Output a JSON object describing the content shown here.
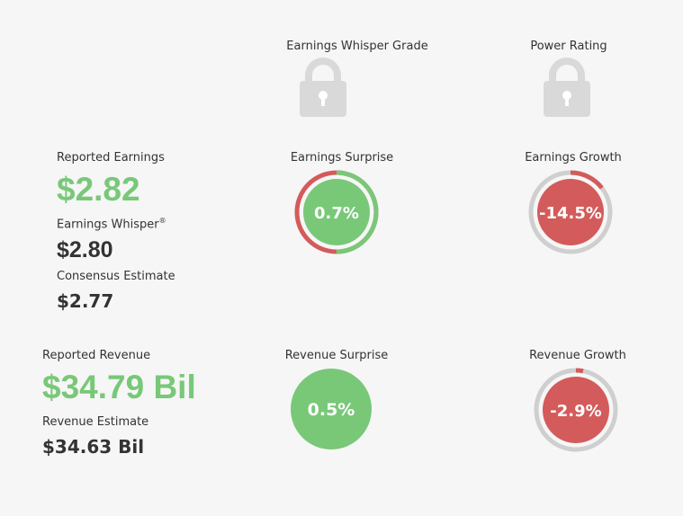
{
  "headers": {
    "earnings_whisper_grade": "Earnings Whisper Grade",
    "power_rating": "Power Rating"
  },
  "earnings": {
    "reported_label": "Reported Earnings",
    "reported_value": "$2.82",
    "whisper_label": "Earnings Whisper",
    "whisper_reg": "®",
    "whisper_value": "$2.80",
    "consensus_label": "Consensus Estimate",
    "consensus_value": "$2.77",
    "surprise_label": "Earnings Surprise",
    "surprise_value": "0.7%",
    "surprise_fraction": 0.5,
    "growth_label": "Earnings Growth",
    "growth_value": "-14.5%",
    "growth_fraction": 0.145
  },
  "revenue": {
    "reported_label": "Reported Revenue",
    "reported_value": "$34.79 Bil",
    "estimate_label": "Revenue Estimate",
    "estimate_value": "$34.63 Bil",
    "surprise_label": "Revenue Surprise",
    "surprise_value": "0.5%",
    "growth_label": "Revenue Growth",
    "growth_value": "-2.9%",
    "growth_fraction": 0.029
  },
  "colors": {
    "green": "#78c878",
    "red": "#d45b5b",
    "grey": "#cfcfcf",
    "lock": "#d9d9d9"
  },
  "icons": {
    "grade_lock": "lock-icon",
    "power_lock": "lock-icon"
  }
}
